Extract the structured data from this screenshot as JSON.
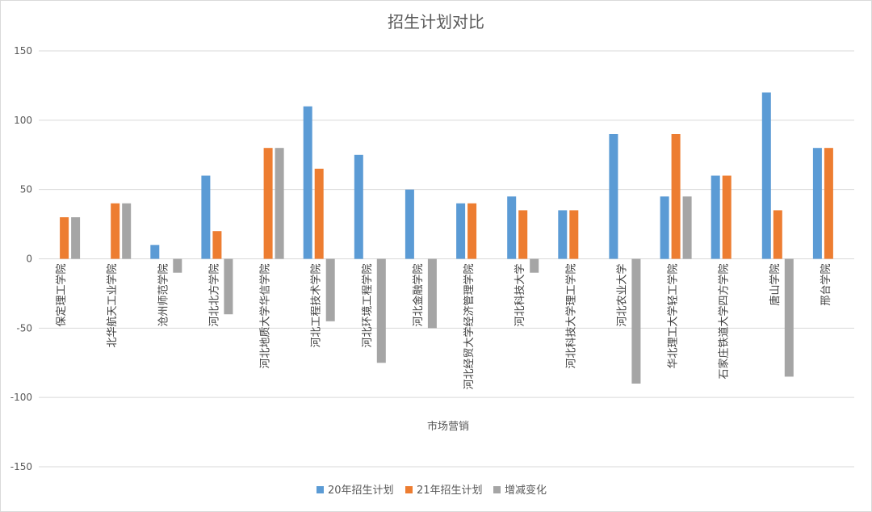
{
  "chart_data": {
    "type": "bar",
    "title": "招生计划对比",
    "xlabel": "市场营销",
    "ylabel": "",
    "ylim": [
      -150,
      150
    ],
    "yticks": [
      150,
      100,
      50,
      0,
      -50,
      -100,
      -150
    ],
    "grid": true,
    "legend_position": "bottom",
    "categories": [
      "保定理工学院",
      "北华航天工业学院",
      "沧州师范学院",
      "河北北方学院",
      "河北地质大学华信学院",
      "河北工程技术学院",
      "河北环境工程学院",
      "河北金融学院",
      "河北经贸大学经济管理学院",
      "河北科技大学",
      "河北科技大学理工学院",
      "河北农业大学",
      "华北理工大学轻工学院",
      "石家庄铁道大学四方学院",
      "唐山学院",
      "邢台学院"
    ],
    "series": [
      {
        "name": "20年招生计划",
        "color": "#5B9BD5",
        "values": [
          0,
          0,
          10,
          60,
          0,
          110,
          75,
          50,
          40,
          45,
          35,
          90,
          45,
          60,
          120,
          80
        ]
      },
      {
        "name": "21年招生计划",
        "color": "#ED7D31",
        "values": [
          30,
          40,
          0,
          20,
          80,
          65,
          0,
          0,
          40,
          35,
          35,
          0,
          90,
          60,
          35,
          80
        ]
      },
      {
        "name": "增减变化",
        "color": "#A5A5A5",
        "values": [
          30,
          40,
          -10,
          -40,
          80,
          -45,
          -75,
          -50,
          0,
          -10,
          0,
          -90,
          45,
          0,
          -85,
          0
        ]
      }
    ]
  }
}
